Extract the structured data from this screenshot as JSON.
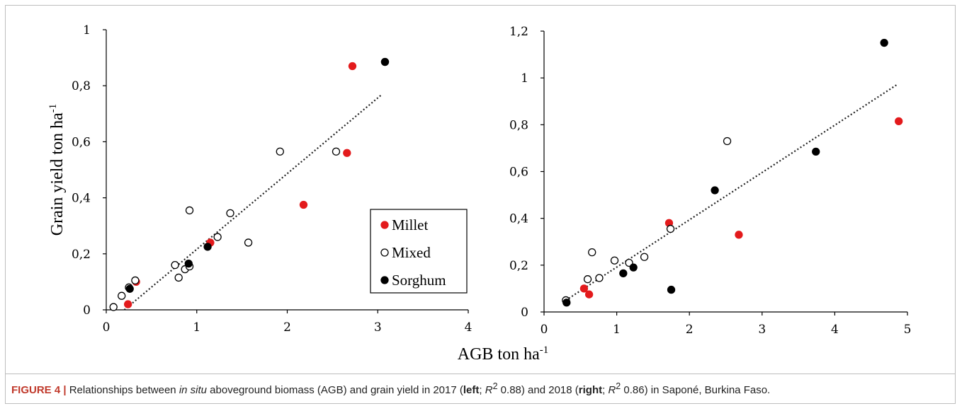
{
  "colors": {
    "millet": "#e31a1c",
    "sorghum": "#000000",
    "mixed": "#ffffff",
    "caption_lead": "#c0392b"
  },
  "chart_data": [
    {
      "type": "scatter",
      "ylabel_main": "Grain yield  ton ha",
      "ylabel_sup": "-1",
      "xlim": [
        0,
        4
      ],
      "ylim": [
        0,
        1
      ],
      "x_ticks": [
        "0",
        "1",
        "2",
        "3",
        "4"
      ],
      "y_ticks": [
        "0",
        "0,2",
        "0,4",
        "0,6",
        "0,8",
        "1"
      ],
      "legend": {
        "placement": "lower-right",
        "entries": [
          "Millet",
          "Mixed",
          "Sorghum"
        ]
      },
      "trendline": [
        [
          0.2,
          0.0
        ],
        [
          3.05,
          0.77
        ]
      ],
      "series": [
        {
          "name": "Millet",
          "marker": "filled-red",
          "points": [
            [
              0.24,
              0.02
            ],
            [
              0.33,
              0.1
            ],
            [
              1.15,
              0.24
            ],
            [
              2.18,
              0.375
            ],
            [
              2.66,
              0.56
            ],
            [
              2.72,
              0.87
            ]
          ]
        },
        {
          "name": "Mixed",
          "marker": "hollow",
          "points": [
            [
              0.08,
              0.01
            ],
            [
              0.17,
              0.05
            ],
            [
              0.25,
              0.08
            ],
            [
              0.32,
              0.105
            ],
            [
              0.76,
              0.16
            ],
            [
              0.8,
              0.115
            ],
            [
              0.87,
              0.145
            ],
            [
              0.92,
              0.155
            ],
            [
              0.92,
              0.355
            ],
            [
              1.23,
              0.26
            ],
            [
              1.37,
              0.345
            ],
            [
              1.57,
              0.24
            ],
            [
              1.92,
              0.565
            ],
            [
              2.54,
              0.565
            ],
            [
              3.08,
              0.885
            ]
          ]
        },
        {
          "name": "Sorghum",
          "marker": "filled-black",
          "points": [
            [
              0.26,
              0.075
            ],
            [
              0.91,
              0.165
            ],
            [
              1.12,
              0.225
            ],
            [
              3.08,
              0.885
            ]
          ]
        }
      ]
    },
    {
      "type": "scatter",
      "xlim": [
        0,
        5
      ],
      "ylim": [
        0,
        1.2
      ],
      "x_ticks": [
        "0",
        "1",
        "2",
        "3",
        "4",
        "5"
      ],
      "y_ticks": [
        "0",
        "0,2",
        "0,4",
        "0,6",
        "0,8",
        "1",
        "1,2"
      ],
      "trendline": [
        [
          0.3,
          0.05
        ],
        [
          4.85,
          0.97
        ]
      ],
      "series": [
        {
          "name": "Millet",
          "marker": "filled-red",
          "points": [
            [
              0.55,
              0.1
            ],
            [
              0.62,
              0.075
            ],
            [
              1.72,
              0.38
            ],
            [
              2.68,
              0.33
            ],
            [
              4.88,
              0.815
            ]
          ]
        },
        {
          "name": "Mixed",
          "marker": "hollow",
          "points": [
            [
              0.3,
              0.05
            ],
            [
              0.6,
              0.14
            ],
            [
              0.66,
              0.255
            ],
            [
              0.76,
              0.145
            ],
            [
              0.97,
              0.22
            ],
            [
              1.17,
              0.21
            ],
            [
              1.38,
              0.235
            ],
            [
              1.74,
              0.355
            ],
            [
              2.52,
              0.73
            ]
          ]
        },
        {
          "name": "Sorghum",
          "marker": "filled-black",
          "points": [
            [
              0.31,
              0.04
            ],
            [
              1.09,
              0.165
            ],
            [
              1.23,
              0.19
            ],
            [
              1.75,
              0.095
            ],
            [
              2.35,
              0.52
            ],
            [
              3.74,
              0.685
            ],
            [
              4.68,
              1.15
            ]
          ]
        }
      ]
    }
  ],
  "shared_xlabel_main": "AGB ton ha",
  "shared_xlabel_sup": "-1",
  "caption": {
    "lead": "FIGURE 4 |",
    "t1": " Relationships between ",
    "i1": "in situ",
    "t2": " aboveground biomass (AGB) and grain yield in 2017 (",
    "b1": "left",
    "t3": "; ",
    "r1": "R",
    "s1": "2",
    "t4": " 0.88) and 2018 (",
    "b2": "right",
    "t5": "; ",
    "r2": "R",
    "s2": "2",
    "t6": " 0.86) in Saponé, Burkina Faso."
  }
}
